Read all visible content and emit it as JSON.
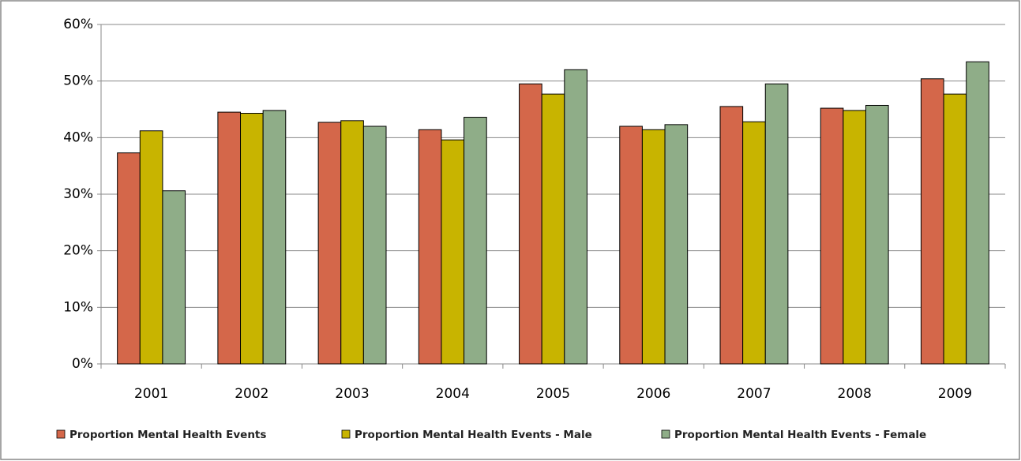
{
  "chart_data": {
    "type": "bar",
    "categories": [
      "2001",
      "2002",
      "2003",
      "2004",
      "2005",
      "2006",
      "2007",
      "2008",
      "2009"
    ],
    "series": [
      {
        "name": "Proportion Mental Health Events",
        "color": "#d4674a",
        "values": [
          37.3,
          44.5,
          42.7,
          41.4,
          49.5,
          42.0,
          45.5,
          45.2,
          50.4
        ]
      },
      {
        "name": "Proportion Mental Health Events - Male",
        "color": "#c8b400",
        "values": [
          41.2,
          44.3,
          43.0,
          39.6,
          47.7,
          41.4,
          42.8,
          44.8,
          47.7
        ]
      },
      {
        "name": "Proportion Mental Health Events - Female",
        "color": "#8fad88",
        "values": [
          30.6,
          44.8,
          42.0,
          43.6,
          52.0,
          42.3,
          49.5,
          45.7,
          53.4
        ]
      }
    ],
    "ylim": [
      0,
      60
    ],
    "yticks": [
      {
        "value": 0,
        "label": "0%"
      },
      {
        "value": 10,
        "label": "10%"
      },
      {
        "value": 20,
        "label": "20%"
      },
      {
        "value": 30,
        "label": "30%"
      },
      {
        "value": 40,
        "label": "40%"
      },
      {
        "value": 50,
        "label": "50%"
      },
      {
        "value": 60,
        "label": "60%"
      }
    ],
    "grid": true,
    "legend": "bottom"
  }
}
